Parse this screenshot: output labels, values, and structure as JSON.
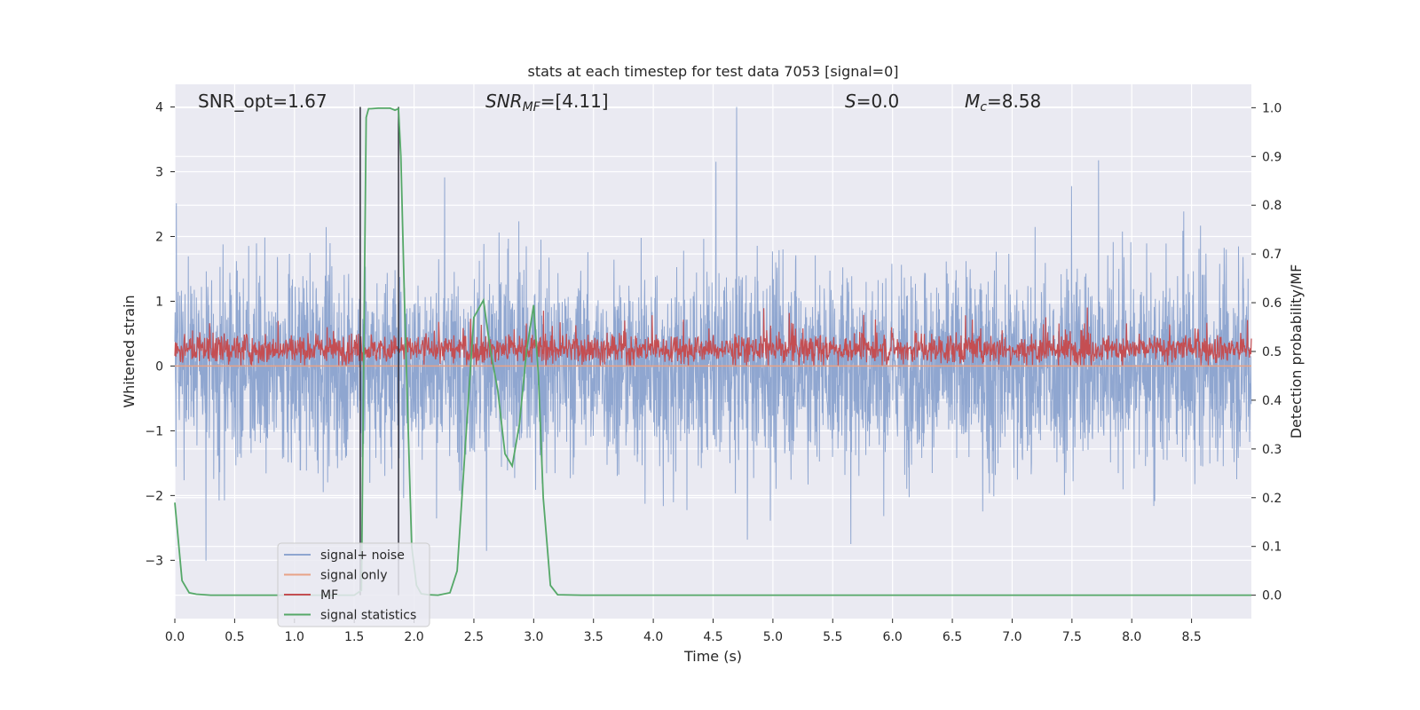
{
  "chart_data": {
    "type": "line",
    "title": "stats at each timestep for test data 7053 [signal=0]",
    "xlabel": "Time (s)",
    "ylabel": "Whitened strain",
    "y2label": "Detection probability/MF",
    "xlim": [
      0.0,
      9.0
    ],
    "ylim": [
      -3.9,
      4.35
    ],
    "y2lim": [
      -0.048,
      1.048
    ],
    "xticks": [
      "0.0",
      "0.5",
      "1.0",
      "1.5",
      "2.0",
      "2.5",
      "3.0",
      "3.5",
      "4.0",
      "4.5",
      "5.0",
      "5.5",
      "6.0",
      "6.5",
      "7.0",
      "7.5",
      "8.0",
      "8.5"
    ],
    "yticks": [
      "4",
      "3",
      "2",
      "1",
      "0",
      "−1",
      "−2",
      "−3"
    ],
    "y2ticks": [
      "1.0",
      "0.9",
      "0.8",
      "0.7",
      "0.6",
      "0.5",
      "0.4",
      "0.3",
      "0.2",
      "0.1",
      "0.0"
    ],
    "grid": true,
    "legend_position": "lower-left",
    "annotations": {
      "snr_opt": "SNR_opt=1.67",
      "snr_mf_base": "SNR",
      "snr_mf_sub": "MF",
      "snr_mf_tail": "=[4.11]",
      "s_var": "S",
      "s_val": "=0.0",
      "mc_base": "M",
      "mc_sub": "c",
      "mc_val": "=8.58"
    },
    "vertical_markers_x": [
      1.55,
      1.87
    ],
    "series": [
      {
        "name": "signal+ noise",
        "color": "#8fa6d0",
        "axis": "left",
        "description_range": [
          -3.55,
          4.0
        ]
      },
      {
        "name": "signal only",
        "color": "#e8a387",
        "axis": "left",
        "x": [
          0.0,
          9.0
        ],
        "values": [
          0.0,
          0.0
        ]
      },
      {
        "name": "MF",
        "color": "#c44e52",
        "axis": "right",
        "description_range": [
          0.47,
          0.6
        ]
      },
      {
        "name": "signal statistics",
        "color": "#55a868",
        "axis": "right",
        "x": [
          0.0,
          0.06,
          0.12,
          0.18,
          0.3,
          0.6,
          0.9,
          1.2,
          1.4,
          1.5,
          1.56,
          1.58,
          1.6,
          1.62,
          1.64,
          1.7,
          1.8,
          1.84,
          1.87,
          1.89,
          1.92,
          1.95,
          1.98,
          2.02,
          2.06,
          2.12,
          2.2,
          2.3,
          2.36,
          2.44,
          2.5,
          2.58,
          2.64,
          2.7,
          2.76,
          2.82,
          2.88,
          2.94,
          3.0,
          3.04,
          3.08,
          3.14,
          3.2,
          3.4,
          4.0,
          5.0,
          6.0,
          7.0,
          8.0,
          9.0
        ],
        "values": [
          0.19,
          0.03,
          0.005,
          0.002,
          0.0,
          0.0,
          0.0,
          0.0,
          0.0,
          0.0,
          0.01,
          0.5,
          0.98,
          0.998,
          0.998,
          0.999,
          0.999,
          0.995,
          0.998,
          0.9,
          0.6,
          0.35,
          0.1,
          0.02,
          0.003,
          0.001,
          0.0,
          0.005,
          0.05,
          0.35,
          0.57,
          0.605,
          0.5,
          0.42,
          0.29,
          0.265,
          0.35,
          0.5,
          0.595,
          0.45,
          0.2,
          0.02,
          0.001,
          0.0,
          0.0,
          0.0,
          0.0,
          0.0,
          0.0,
          0.0
        ]
      }
    ]
  }
}
